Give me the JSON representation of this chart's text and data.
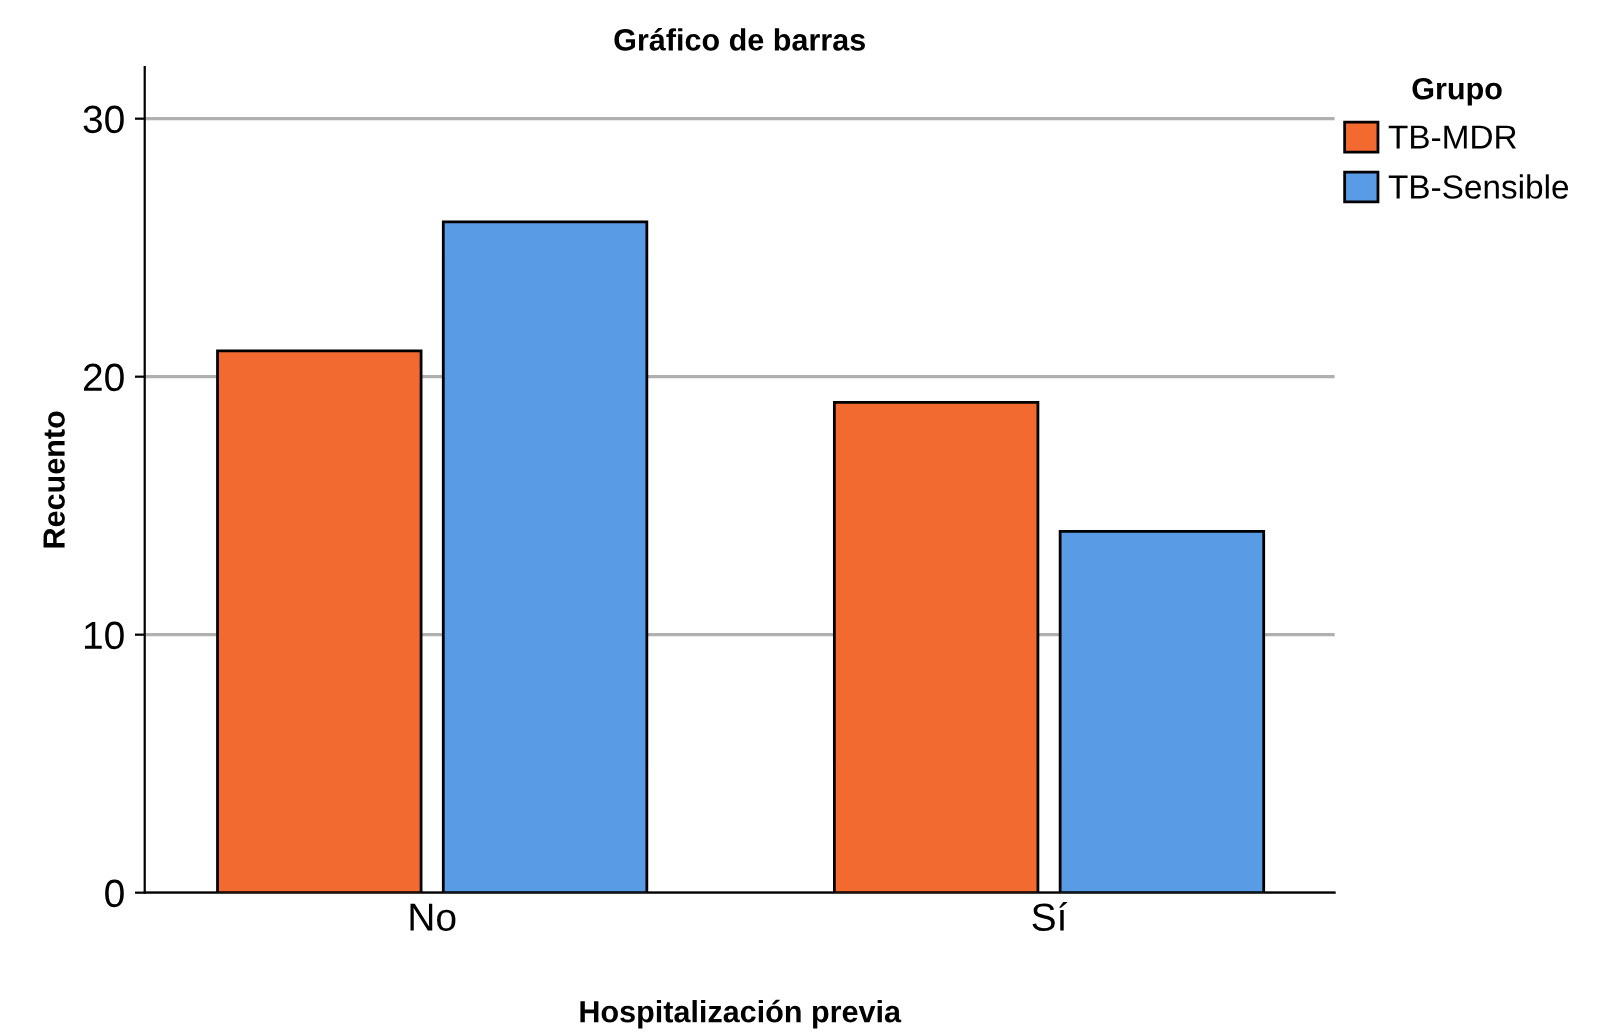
{
  "chart_data": {
    "type": "bar",
    "title": "Gráfico de barras",
    "xlabel": "Hospitalización previa",
    "ylabel": "Recuento",
    "legend_title": "Grupo",
    "categories": [
      "No",
      "Sí"
    ],
    "series": [
      {
        "name": "TB-MDR",
        "color": "#f26a30",
        "values": [
          21,
          19
        ]
      },
      {
        "name": "TB-Sensible",
        "color": "#5a9be6",
        "values": [
          26,
          14
        ]
      }
    ],
    "ylim": [
      0,
      32
    ],
    "yticks": [
      0,
      10,
      20,
      30
    ],
    "grid": "y",
    "legend": "top right"
  }
}
